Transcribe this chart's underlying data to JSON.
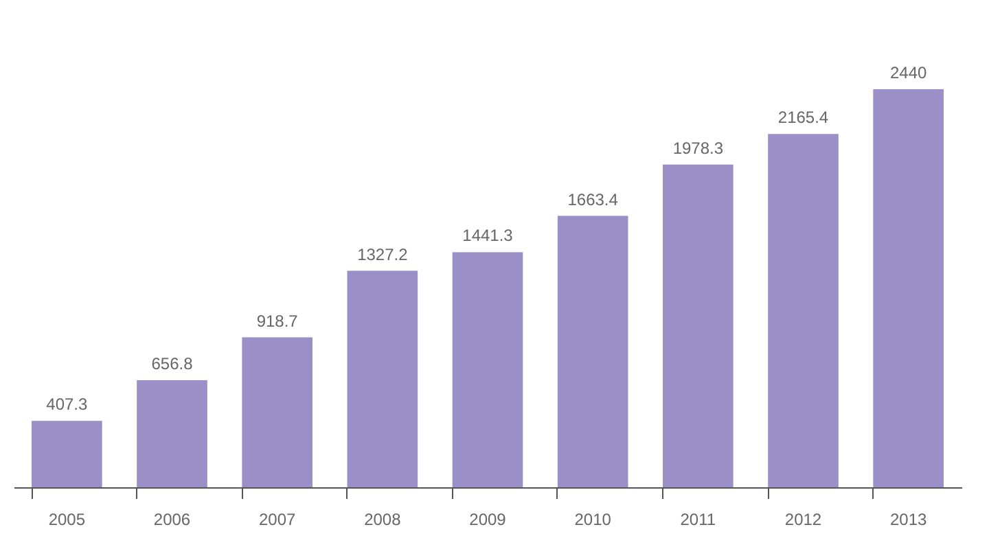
{
  "chart_data": {
    "type": "bar",
    "categories": [
      "2005",
      "2006",
      "2007",
      "2008",
      "2009",
      "2010",
      "2011",
      "2012",
      "2013"
    ],
    "values": [
      407.3,
      656.8,
      918.7,
      1327.2,
      1441.3,
      1663.4,
      1978.3,
      2165.4,
      2440
    ],
    "color": "#9a8fc7",
    "data_labels": true,
    "grid": false
  }
}
